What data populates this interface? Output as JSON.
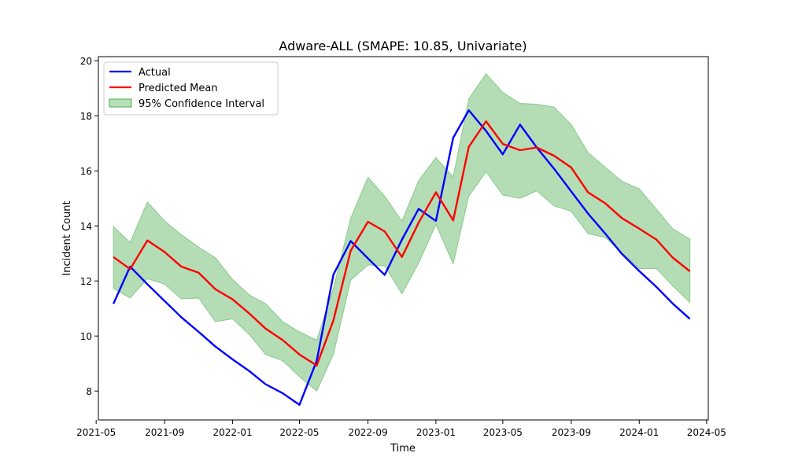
{
  "chart_data": {
    "type": "line",
    "title": "Adware-ALL (SMAPE: 10.85, Univariate)",
    "xlabel": "Time",
    "ylabel": "Incident Count",
    "ylim": [
      6.95,
      20.15
    ],
    "xlim": [
      "2021-05-05",
      "2024-05-04"
    ],
    "grid": false,
    "legend_position": "top-left",
    "x": [
      "2021-06-01",
      "2021-07-01",
      "2021-08-01",
      "2021-09-01",
      "2021-10-01",
      "2021-11-01",
      "2021-12-01",
      "2022-01-01",
      "2022-02-01",
      "2022-03-01",
      "2022-04-01",
      "2022-05-01",
      "2022-06-01",
      "2022-07-01",
      "2022-08-01",
      "2022-09-01",
      "2022-10-01",
      "2022-11-01",
      "2022-12-01",
      "2023-01-01",
      "2023-02-01",
      "2023-03-01",
      "2023-04-01",
      "2023-05-01",
      "2023-06-01",
      "2023-07-01",
      "2023-08-01",
      "2023-09-01",
      "2023-10-01",
      "2023-11-01",
      "2023-12-01",
      "2024-01-01",
      "2024-02-01",
      "2024-03-01",
      "2024-04-01"
    ],
    "x_ticks": [
      "2021-05",
      "2021-09",
      "2022-01",
      "2022-05",
      "2022-09",
      "2023-01",
      "2023-05",
      "2023-09",
      "2024-01",
      "2024-05"
    ],
    "y_ticks": [
      8,
      10,
      12,
      14,
      16,
      18,
      20
    ],
    "series": [
      {
        "name": "Actual",
        "color": "#0000ff",
        "values": [
          11.17,
          12.52,
          11.88,
          11.27,
          10.68,
          10.15,
          9.62,
          9.15,
          8.71,
          8.25,
          7.92,
          7.5,
          9.1,
          12.23,
          13.45,
          12.82,
          12.22,
          13.5,
          14.62,
          14.18,
          17.2,
          18.2,
          17.45,
          16.6,
          17.68,
          16.85,
          16.08,
          15.25,
          14.45,
          13.72,
          12.98,
          12.36,
          11.78,
          11.18,
          10.62
        ]
      },
      {
        "name": "Predicted Mean",
        "color": "#ff0000",
        "values": [
          12.87,
          12.43,
          13.47,
          13.05,
          12.52,
          12.3,
          11.7,
          11.33,
          10.8,
          10.27,
          9.85,
          9.33,
          8.93,
          10.57,
          13.1,
          14.15,
          13.8,
          12.87,
          14.12,
          15.22,
          14.2,
          16.87,
          17.8,
          16.98,
          16.75,
          16.85,
          16.55,
          16.12,
          15.22,
          14.82,
          14.28,
          13.9,
          13.5,
          12.85,
          12.35
        ]
      }
    ],
    "interval": {
      "name": "95% Confidence Interval",
      "color": "#4caf50",
      "lower": [
        11.73,
        11.38,
        12.08,
        11.88,
        11.35,
        11.38,
        10.52,
        10.62,
        10.03,
        9.33,
        9.1,
        8.52,
        8.0,
        9.33,
        12.03,
        12.58,
        12.55,
        11.53,
        12.65,
        14.05,
        12.62,
        15.08,
        15.97,
        15.12,
        15.0,
        15.27,
        14.73,
        14.53,
        13.72,
        13.58,
        13.02,
        12.45,
        12.45,
        11.82,
        11.22
      ],
      "upper": [
        13.98,
        13.4,
        14.87,
        14.18,
        13.68,
        13.23,
        12.85,
        12.05,
        11.48,
        11.18,
        10.52,
        10.15,
        9.85,
        11.73,
        14.28,
        15.77,
        15.08,
        14.17,
        15.65,
        16.48,
        15.78,
        18.62,
        19.53,
        18.85,
        18.45,
        18.42,
        18.32,
        17.68,
        16.67,
        16.13,
        15.62,
        15.35,
        14.6,
        13.9,
        13.52
      ]
    }
  }
}
